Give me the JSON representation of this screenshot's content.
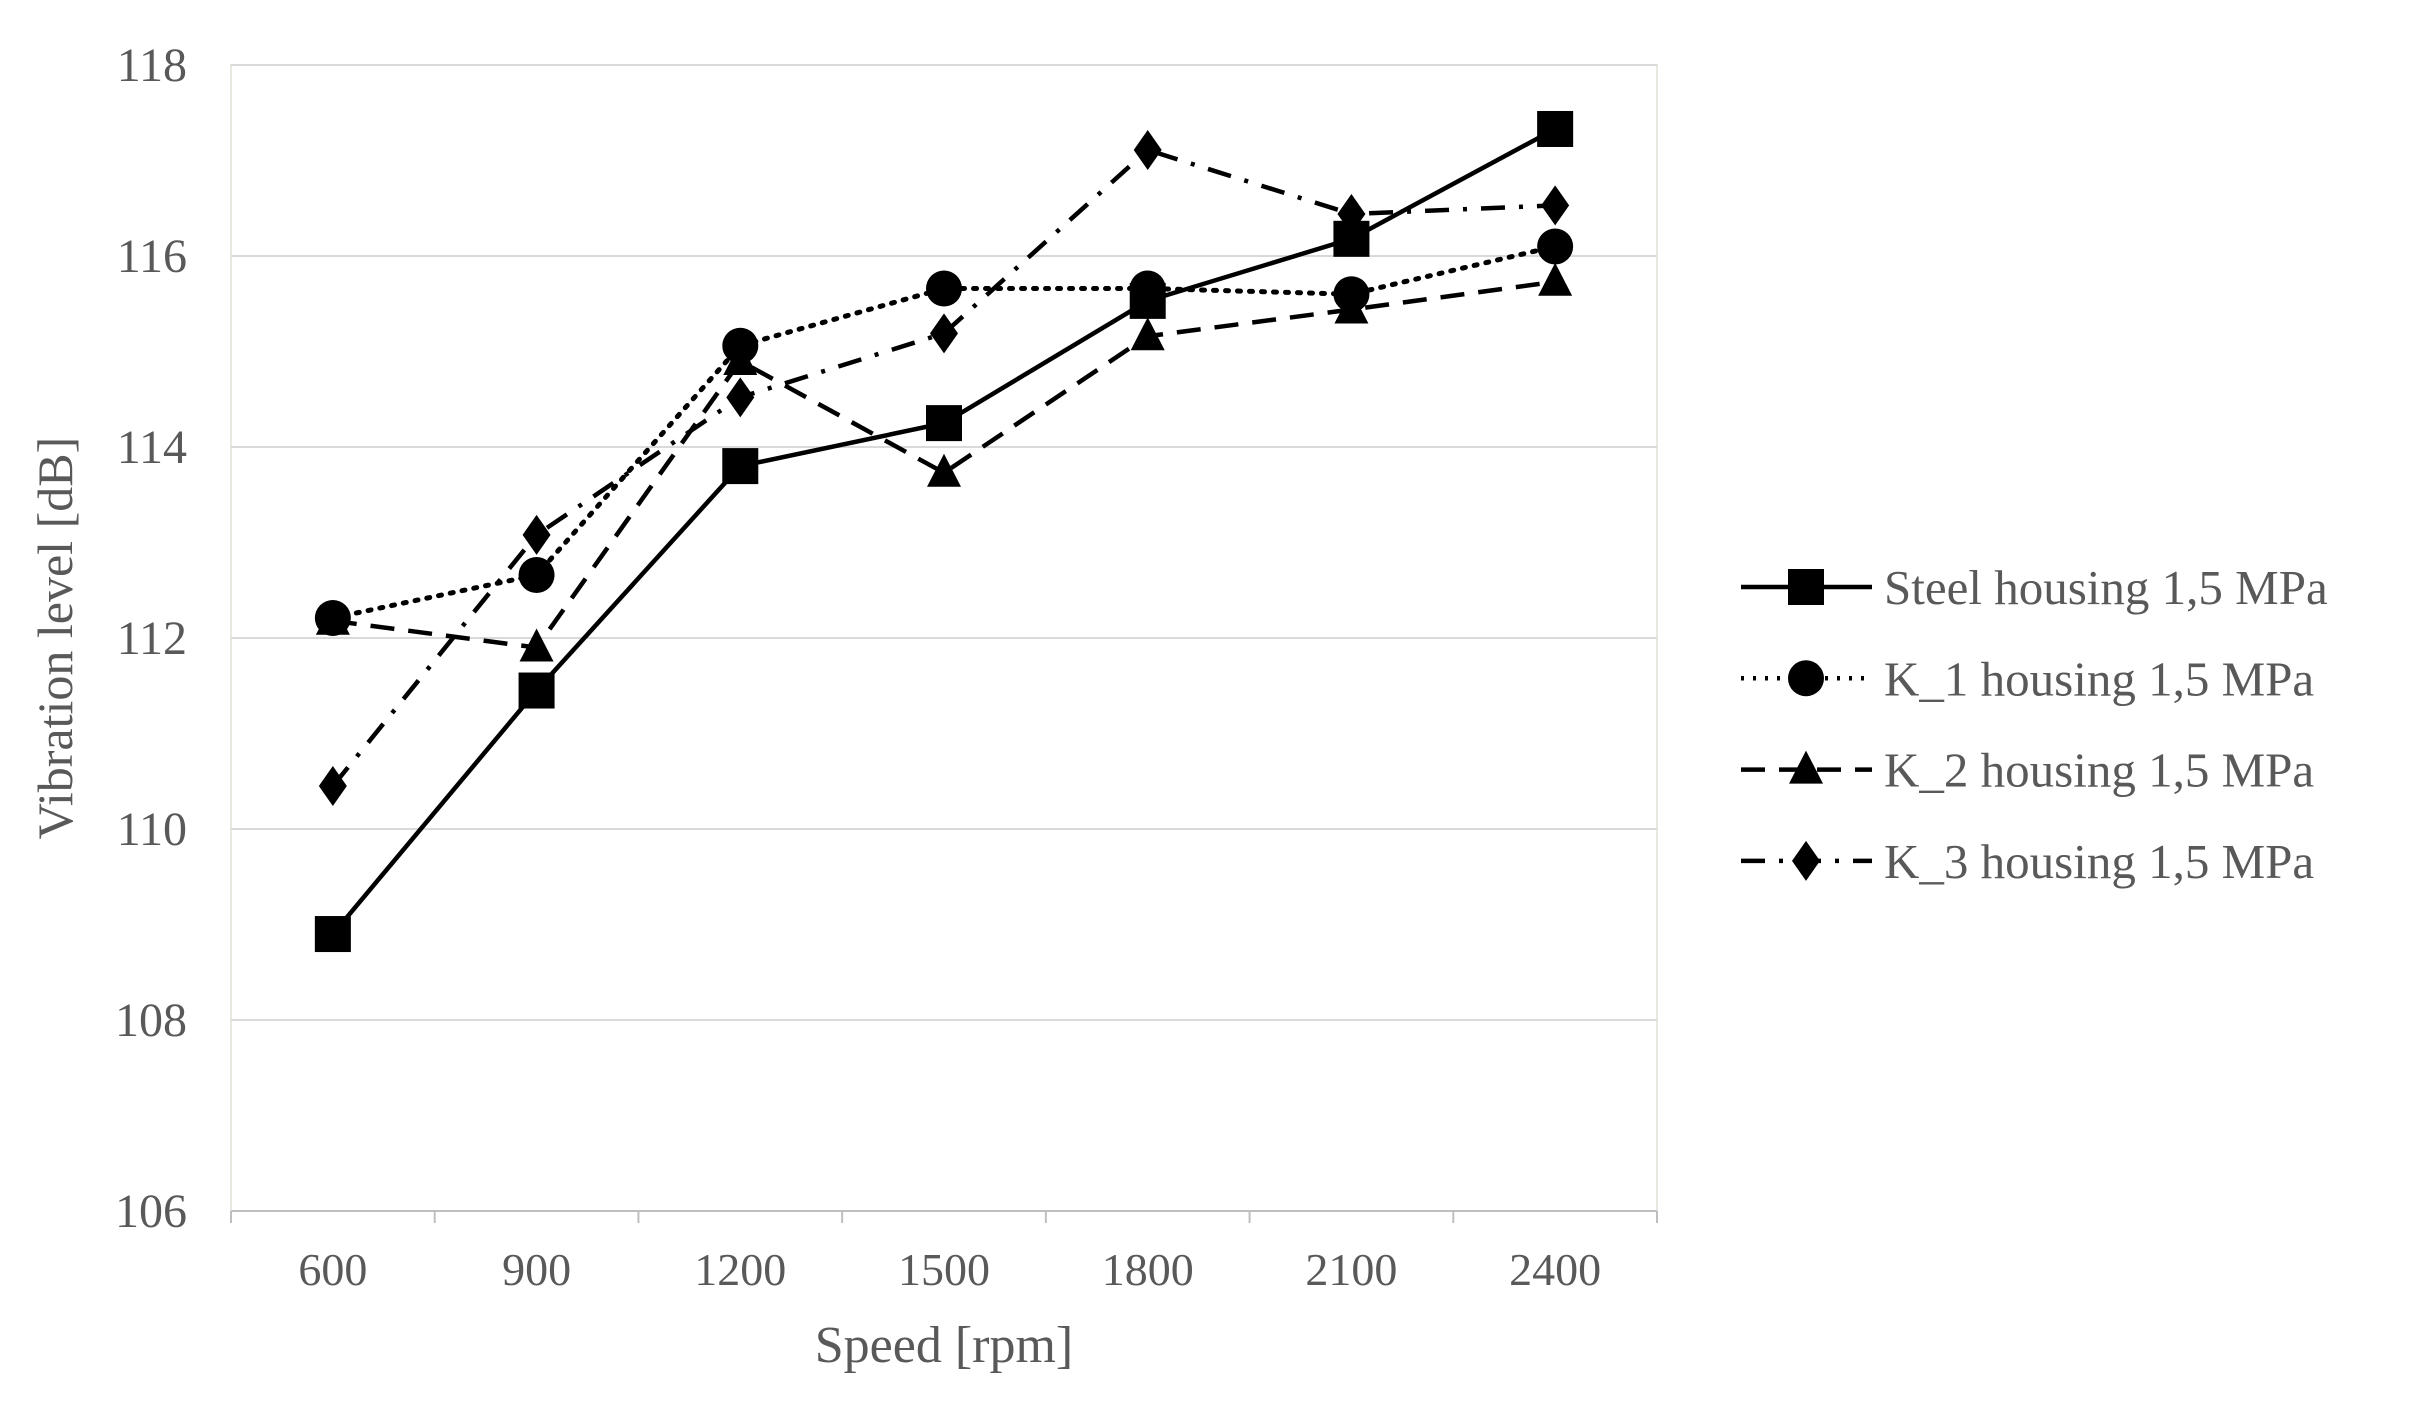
{
  "chart_data": {
    "type": "line",
    "title": "",
    "xlabel": "Speed [rpm]",
    "ylabel": "Vibration level [dB]",
    "categories": [
      "600",
      "900",
      "1200",
      "1500",
      "1800",
      "2100",
      "2400"
    ],
    "ylim": [
      106,
      118
    ],
    "yticks": [
      106,
      108,
      110,
      112,
      114,
      116,
      118
    ],
    "grid": true,
    "legend_position": "right",
    "series": [
      {
        "name": "Steel housing 1,5 MPa",
        "marker": "square",
        "dash": "solid",
        "color": "#000000",
        "values": [
          108.9,
          111.45,
          113.8,
          114.25,
          115.53,
          116.18,
          117.33
        ]
      },
      {
        "name": "K_1 housing 1,5 MPa",
        "marker": "circle",
        "dash": "dotted",
        "color": "#000000",
        "values": [
          112.21,
          112.66,
          115.06,
          115.66,
          115.66,
          115.6,
          116.1
        ]
      },
      {
        "name": "K_2 housing 1,5 MPa",
        "marker": "triangle",
        "dash": "dashed",
        "color": "#000000",
        "values": [
          112.18,
          111.9,
          114.9,
          113.73,
          115.16,
          115.44,
          115.73
        ]
      },
      {
        "name": "K_3 housing 1,5 MPa",
        "marker": "diamond",
        "dash": "dash-dot",
        "color": "#000000",
        "values": [
          110.45,
          113.08,
          114.52,
          115.19,
          117.11,
          116.44,
          116.53
        ]
      }
    ]
  }
}
